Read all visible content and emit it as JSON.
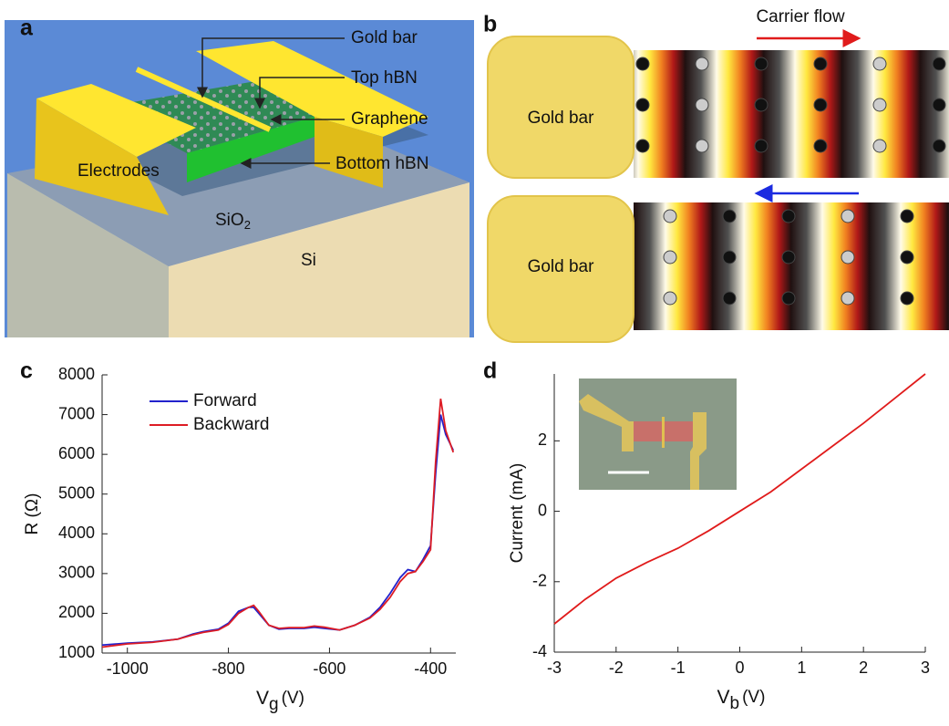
{
  "panels": {
    "a": {
      "letter": "a",
      "labels": [
        "Gold bar",
        "Top hBN",
        "Graphene",
        "Bottom hBN",
        "Electrodes"
      ],
      "substrate": {
        "text": "SiO",
        "sub": "2"
      },
      "base": "Si"
    },
    "b": {
      "letter": "b",
      "flow": "Carrier flow",
      "bar_top": "Gold bar",
      "bar_bottom": "Gold bar"
    },
    "c": {
      "letter": "c"
    },
    "d": {
      "letter": "d"
    }
  },
  "chart_data": [
    {
      "type": "line",
      "xlabel": {
        "text": "V",
        "sub": "g",
        "unit": "(V)"
      },
      "ylabel": "R (Ω)",
      "x": [
        -1050,
        -1000,
        -950,
        -900,
        -870,
        -850,
        -820,
        -800,
        -780,
        -760,
        -750,
        -740,
        -720,
        -700,
        -680,
        -650,
        -630,
        -610,
        -580,
        -550,
        -520,
        -500,
        -480,
        -460,
        -445,
        -430,
        -415,
        -400,
        -390,
        -380,
        -370,
        -355
      ],
      "series": [
        {
          "name": "Forward",
          "color": "#2222cc",
          "values": [
            1200,
            1250,
            1280,
            1350,
            1480,
            1540,
            1600,
            1750,
            2050,
            2150,
            2150,
            2000,
            1700,
            1600,
            1620,
            1620,
            1650,
            1620,
            1580,
            1700,
            1900,
            2150,
            2500,
            2900,
            3100,
            3050,
            3350,
            3700,
            5500,
            7000,
            6500,
            6100
          ]
        },
        {
          "name": "Backward",
          "color": "#dd1c24",
          "values": [
            1150,
            1230,
            1270,
            1350,
            1460,
            1520,
            1580,
            1720,
            2000,
            2150,
            2200,
            2050,
            1700,
            1620,
            1640,
            1640,
            1680,
            1650,
            1580,
            1700,
            1880,
            2100,
            2400,
            2800,
            3000,
            3050,
            3300,
            3600,
            5800,
            7400,
            6600,
            6050
          ]
        }
      ],
      "xlim": [
        -1050,
        -350
      ],
      "ylim": [
        1000,
        8000
      ],
      "xticks": [
        -1000,
        -800,
        -600,
        -400
      ],
      "yticks": [
        1000,
        2000,
        3000,
        4000,
        5000,
        6000,
        7000,
        8000
      ],
      "grid": false,
      "legend": "upper left"
    },
    {
      "type": "line",
      "xlabel": {
        "text": "V",
        "sub": "b",
        "unit": "(V)"
      },
      "ylabel": "Current (mA)",
      "x": [
        -3,
        -2.5,
        -2,
        -1.5,
        -1,
        -0.5,
        0,
        0.5,
        1,
        1.5,
        2,
        2.5,
        3
      ],
      "series": [
        {
          "color": "#e01b1b",
          "values": [
            -3.2,
            -2.5,
            -1.9,
            -1.45,
            -1.05,
            -0.55,
            0,
            0.55,
            1.2,
            1.85,
            2.5,
            3.2,
            3.9
          ]
        }
      ],
      "xlim": [
        -3,
        3
      ],
      "ylim": [
        -4,
        3.9
      ],
      "xticks": [
        -3,
        -2,
        -1,
        0,
        1,
        2,
        3
      ],
      "yticks": [
        -4,
        -2,
        0,
        2
      ],
      "grid": false
    }
  ]
}
